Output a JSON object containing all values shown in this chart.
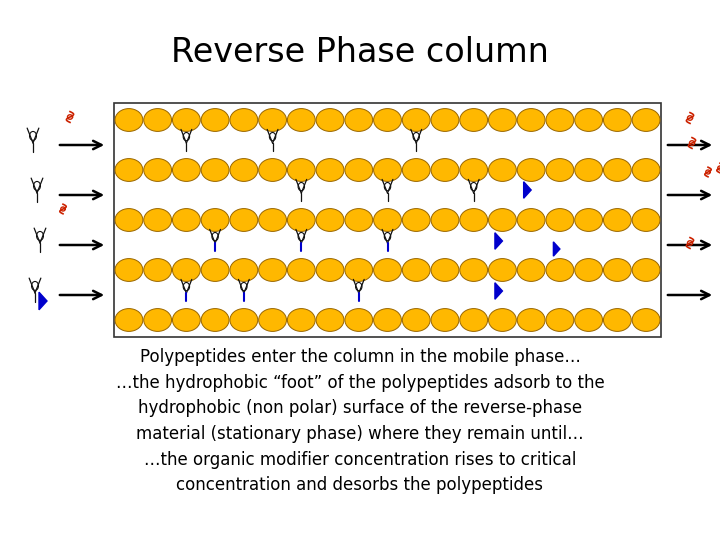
{
  "title": "Reverse Phase column",
  "title_fontsize": 24,
  "body_text_lines": [
    "Polypeptides enter the column in the mobile phase…",
    "…the hydrophobic “foot” of the polypeptides adsorb to the",
    "hydrophobic (non polar) surface of the reverse-phase",
    "material (stationary phase) where they remain until…",
    "…the organic modifier concentration rises to critical",
    "concentration and desorbs the polypeptides"
  ],
  "body_fontsize": 12,
  "bg_color": "#ffffff",
  "bead_color": "#FFB800",
  "bead_edge_color": "#996600",
  "num_cols": 19,
  "num_rows": 5
}
